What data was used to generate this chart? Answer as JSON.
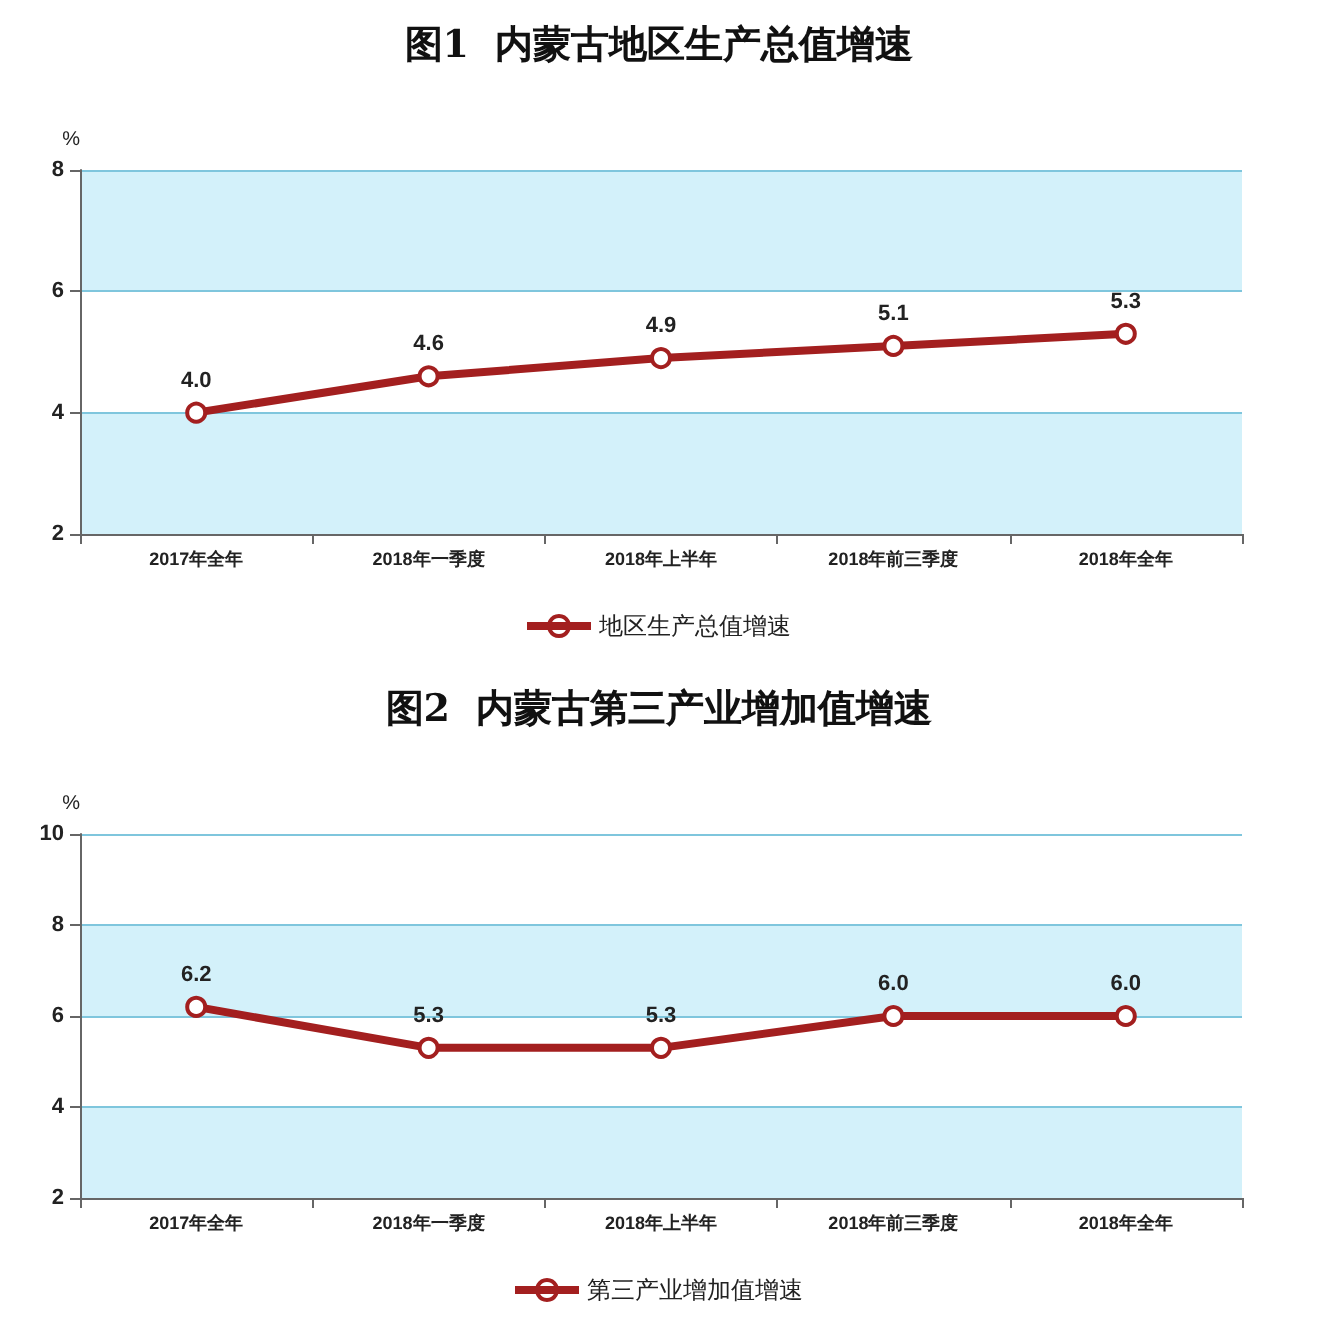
{
  "chart_data": [
    {
      "type": "line",
      "title": "图1  内蒙古地区生产总值增速",
      "ylabel": "%",
      "categories": [
        "2017年全年",
        "2018年一季度",
        "2018年上半年",
        "2018年前三季度",
        "2018年全年"
      ],
      "series": [
        {
          "name": "地区生产总值增速",
          "color": "#a31f1f",
          "values": [
            4.0,
            4.6,
            4.9,
            5.1,
            5.3
          ],
          "value_labels": [
            "4.0",
            "4.6",
            "4.9",
            "5.1",
            "5.3"
          ]
        }
      ],
      "ylim": [
        2,
        8
      ],
      "yticks": [
        2,
        4,
        6,
        8
      ],
      "grid": "y",
      "legend": "bottom",
      "marker": "circle",
      "line_style": "solid"
    },
    {
      "type": "line",
      "title": "图2  内蒙古第三产业增加值增速",
      "ylabel": "%",
      "categories": [
        "2017年全年",
        "2018年一季度",
        "2018年上半年",
        "2018年前三季度",
        "2018年全年"
      ],
      "series": [
        {
          "name": "第三产业增加值增速",
          "color": "#a31f1f",
          "values": [
            6.2,
            5.3,
            5.3,
            6.0,
            6.0
          ],
          "value_labels": [
            "6.2",
            "5.3",
            "5.3",
            "6.0",
            "6.0"
          ]
        }
      ],
      "ylim": [
        2,
        10
      ],
      "yticks": [
        2,
        4,
        6,
        8,
        10
      ],
      "grid": "y",
      "legend": "bottom",
      "marker": "circle",
      "line_style": "solid"
    }
  ]
}
